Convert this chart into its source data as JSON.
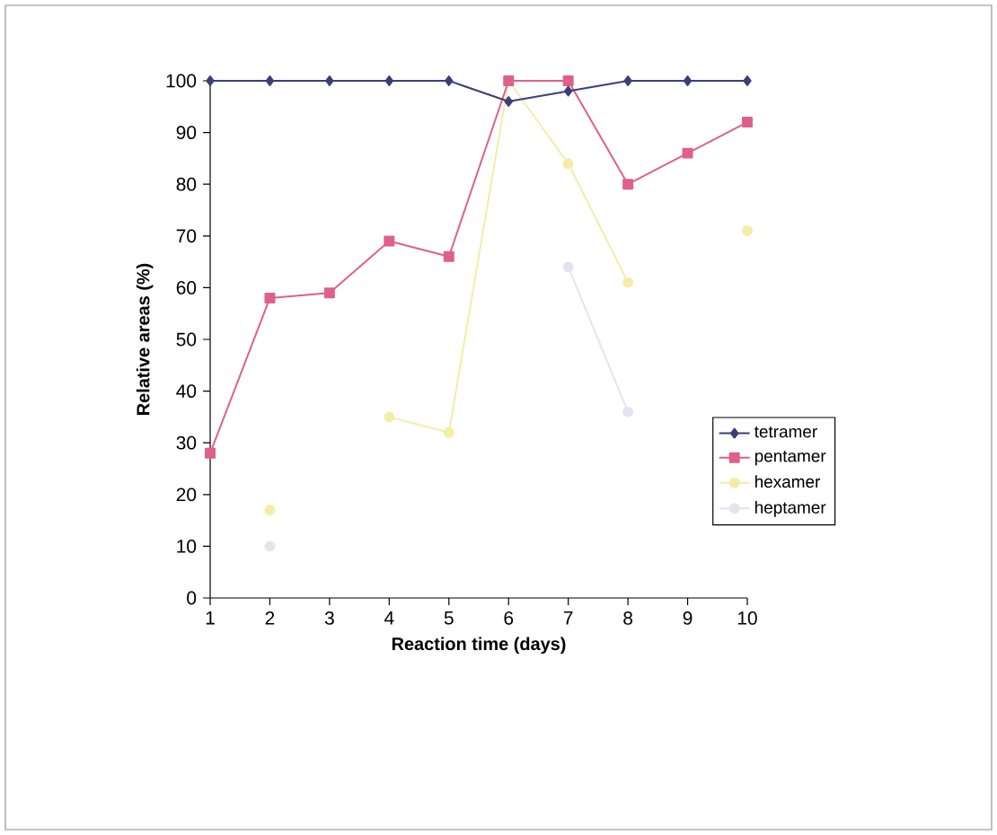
{
  "chart_data": {
    "type": "line",
    "xlabel": "Reaction time (days)",
    "ylabel": "Relative areas (%)",
    "x": [
      1,
      2,
      3,
      4,
      5,
      6,
      7,
      8,
      9,
      10
    ],
    "xlim": [
      1,
      10
    ],
    "xticks": [
      1,
      2,
      3,
      4,
      5,
      6,
      7,
      8,
      9,
      10
    ],
    "ylim": [
      0,
      100
    ],
    "yticks": [
      0,
      10,
      20,
      30,
      40,
      50,
      60,
      70,
      80,
      90,
      100
    ],
    "grid": false,
    "legend": "right",
    "series": [
      {
        "name": "tetramer",
        "color": "#3a3f7a",
        "marker": "diamond",
        "values": [
          100,
          100,
          100,
          100,
          100,
          96,
          98,
          100,
          100,
          100
        ]
      },
      {
        "name": "pentamer",
        "color": "#e0608a",
        "marker": "square",
        "values": [
          28,
          58,
          59,
          69,
          66,
          100,
          100,
          80,
          86,
          92
        ]
      },
      {
        "name": "hexamer",
        "color": "#f3eda8",
        "marker": "circle",
        "values": [
          null,
          17,
          null,
          35,
          32,
          100,
          84,
          61,
          null,
          71
        ]
      },
      {
        "name": "heptamer",
        "color": "#e2e5ee",
        "marker": "circle",
        "values": [
          null,
          10,
          null,
          null,
          null,
          null,
          64,
          36,
          null,
          null
        ]
      }
    ]
  }
}
